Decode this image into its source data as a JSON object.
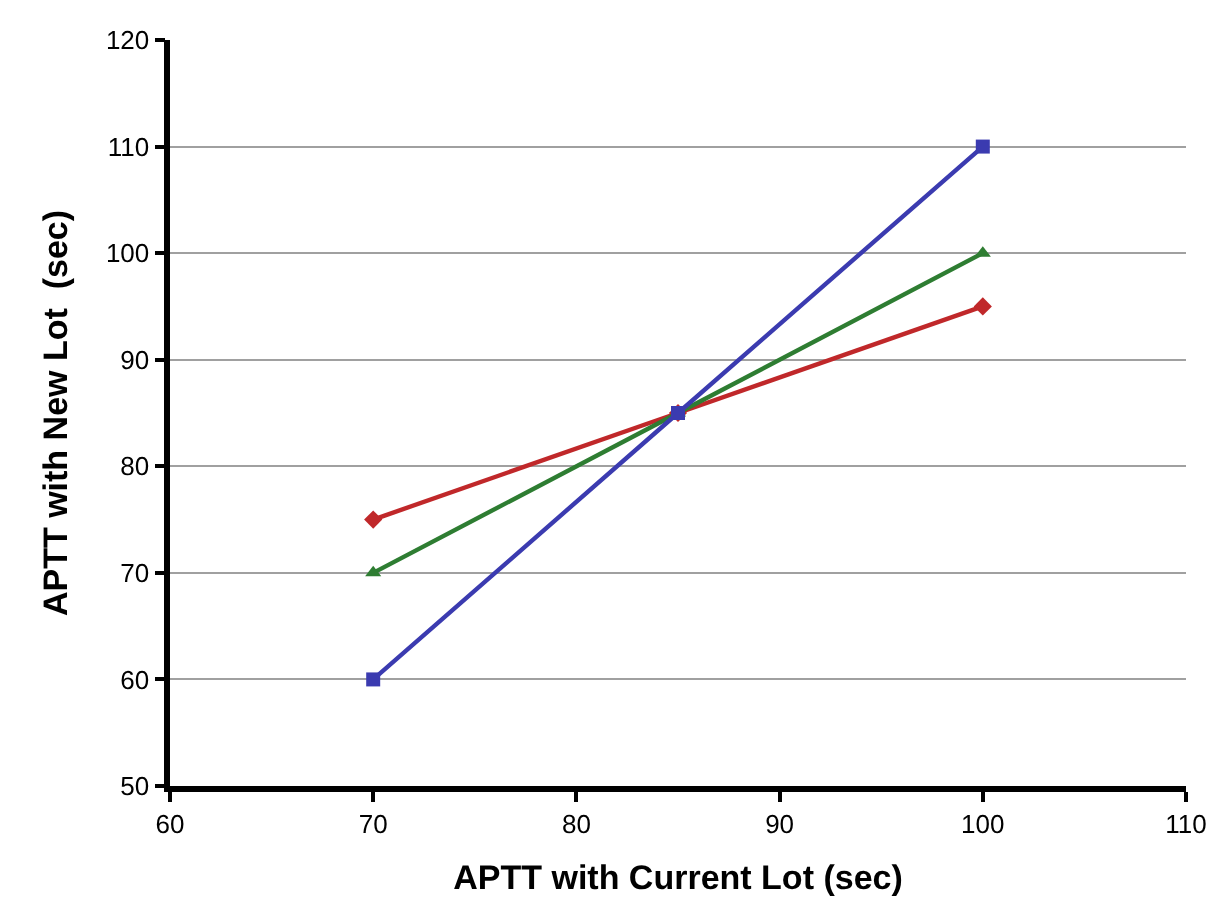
{
  "chart_data": {
    "type": "line",
    "xlabel": "APTT with Current Lot (sec)",
    "ylabel": "APTT with New Lot  (sec)",
    "x": [
      70,
      85,
      100
    ],
    "series": [
      {
        "color": "#3b3bb0",
        "values": [
          60,
          85,
          110
        ],
        "marker": "square"
      },
      {
        "color": "#2e7d32",
        "values": [
          70,
          85,
          100
        ],
        "marker": "triangle"
      },
      {
        "color": "#c0282a",
        "values": [
          75,
          85,
          95
        ],
        "marker": "diamond"
      }
    ],
    "xlim": [
      60,
      110
    ],
    "xticks": [
      60,
      70,
      80,
      90,
      100,
      110
    ],
    "ylim": [
      50,
      120
    ],
    "yticks": [
      50,
      60,
      70,
      80,
      90,
      100,
      110,
      120
    ],
    "grid": "y",
    "line_style": "solid"
  }
}
